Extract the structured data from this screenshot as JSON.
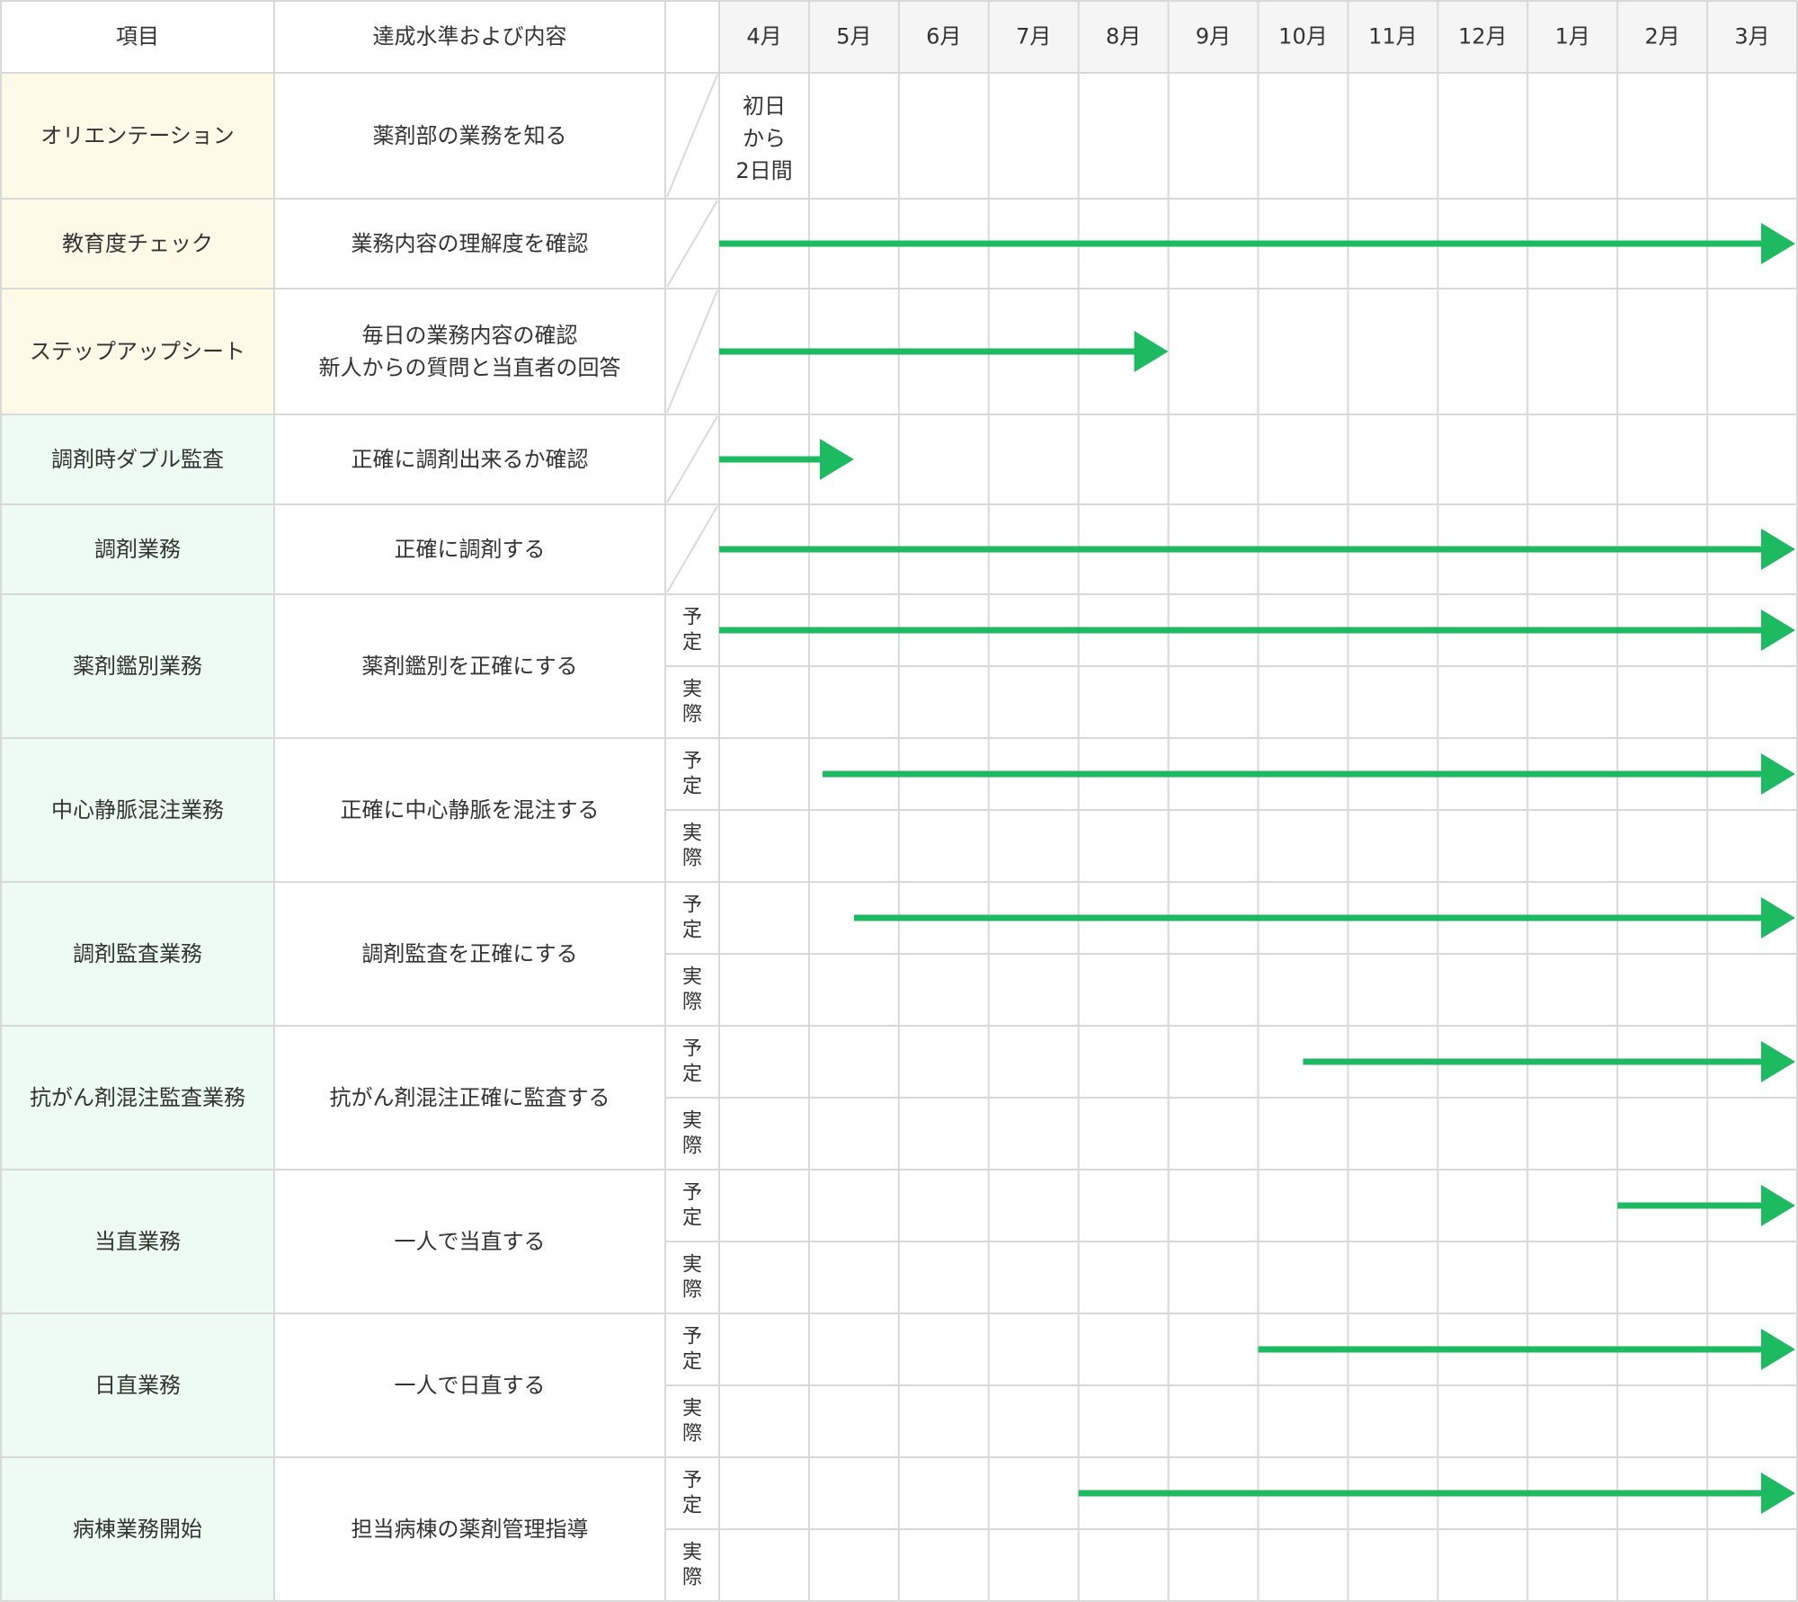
{
  "header": {
    "item": "項目",
    "standard": "達成水準および内容",
    "months": [
      "4月",
      "5月",
      "6月",
      "7月",
      "8月",
      "9月",
      "10月",
      "11月",
      "12月",
      "1月",
      "2月",
      "3月"
    ]
  },
  "plan_label": "予定",
  "actual_label": "実際",
  "rows": [
    {
      "item": "オリエンテーション",
      "standard": [
        "薬剤部の業務を知る"
      ],
      "bg": "#fff9e8",
      "split": false,
      "note": [
        "初日",
        "から",
        "2日間"
      ],
      "arrow": null
    },
    {
      "item": "教育度チェック",
      "standard": [
        "業務内容の理解度を確認"
      ],
      "bg": "#fff9e8",
      "split": false,
      "arrow": {
        "start_month": 0,
        "end_month": 12
      }
    },
    {
      "item": "ステップアップシート",
      "standard": [
        "毎日の業務内容の確認",
        "新人からの質問と当直者の回答"
      ],
      "bg": "#fff9e8",
      "split": false,
      "arrow": {
        "start_month": 0,
        "end_month": 5
      }
    },
    {
      "item": "調剤時ダブル監査",
      "standard": [
        "正確に調剤出来るか確認"
      ],
      "bg": "#eefbf2",
      "split": false,
      "arrow": {
        "start_month": 0,
        "end_month": 1.5
      }
    },
    {
      "item": "調剤業務",
      "standard": [
        "正確に調剤する"
      ],
      "bg": "#eefbf2",
      "split": false,
      "arrow": {
        "start_month": 0,
        "end_month": 12
      }
    },
    {
      "item": "薬剤鑑別業務",
      "standard": [
        "薬剤鑑別を正確にする"
      ],
      "bg": "#eefbf2",
      "split": true,
      "arrow": {
        "start_month": 0,
        "end_month": 12
      }
    },
    {
      "item": "中心静脈混注業務",
      "standard": [
        "正確に中心静脈を混注する"
      ],
      "bg": "#eefbf2",
      "split": true,
      "arrow": {
        "start_month": 1.15,
        "end_month": 12
      }
    },
    {
      "item": "調剤監査業務",
      "standard": [
        "調剤監査を正確にする"
      ],
      "bg": "#eefbf2",
      "split": true,
      "arrow": {
        "start_month": 1.5,
        "end_month": 12
      }
    },
    {
      "item": "抗がん剤混注監査業務",
      "standard": [
        "抗がん剤混注正確に監査する"
      ],
      "bg": "#eefbf2",
      "split": true,
      "arrow": {
        "start_month": 6.5,
        "end_month": 12
      }
    },
    {
      "item": "当直業務",
      "standard": [
        "一人で当直する"
      ],
      "bg": "#eefbf2",
      "split": true,
      "arrow": {
        "start_month": 10,
        "end_month": 12
      }
    },
    {
      "item": "日直業務",
      "standard": [
        "一人で日直する"
      ],
      "bg": "#eefbf2",
      "split": true,
      "arrow": {
        "start_month": 6,
        "end_month": 12
      }
    },
    {
      "item": "病棟業務開始",
      "standard": [
        "担当病棟の薬剤管理指導"
      ],
      "bg": "#eefbf2",
      "split": true,
      "arrow": {
        "start_month": 4,
        "end_month": 12
      }
    }
  ],
  "colors": {
    "grid": "#d9d9d9",
    "header_bg": "#f5f5f5",
    "arrow": "#1dba62",
    "text": "#333333"
  }
}
